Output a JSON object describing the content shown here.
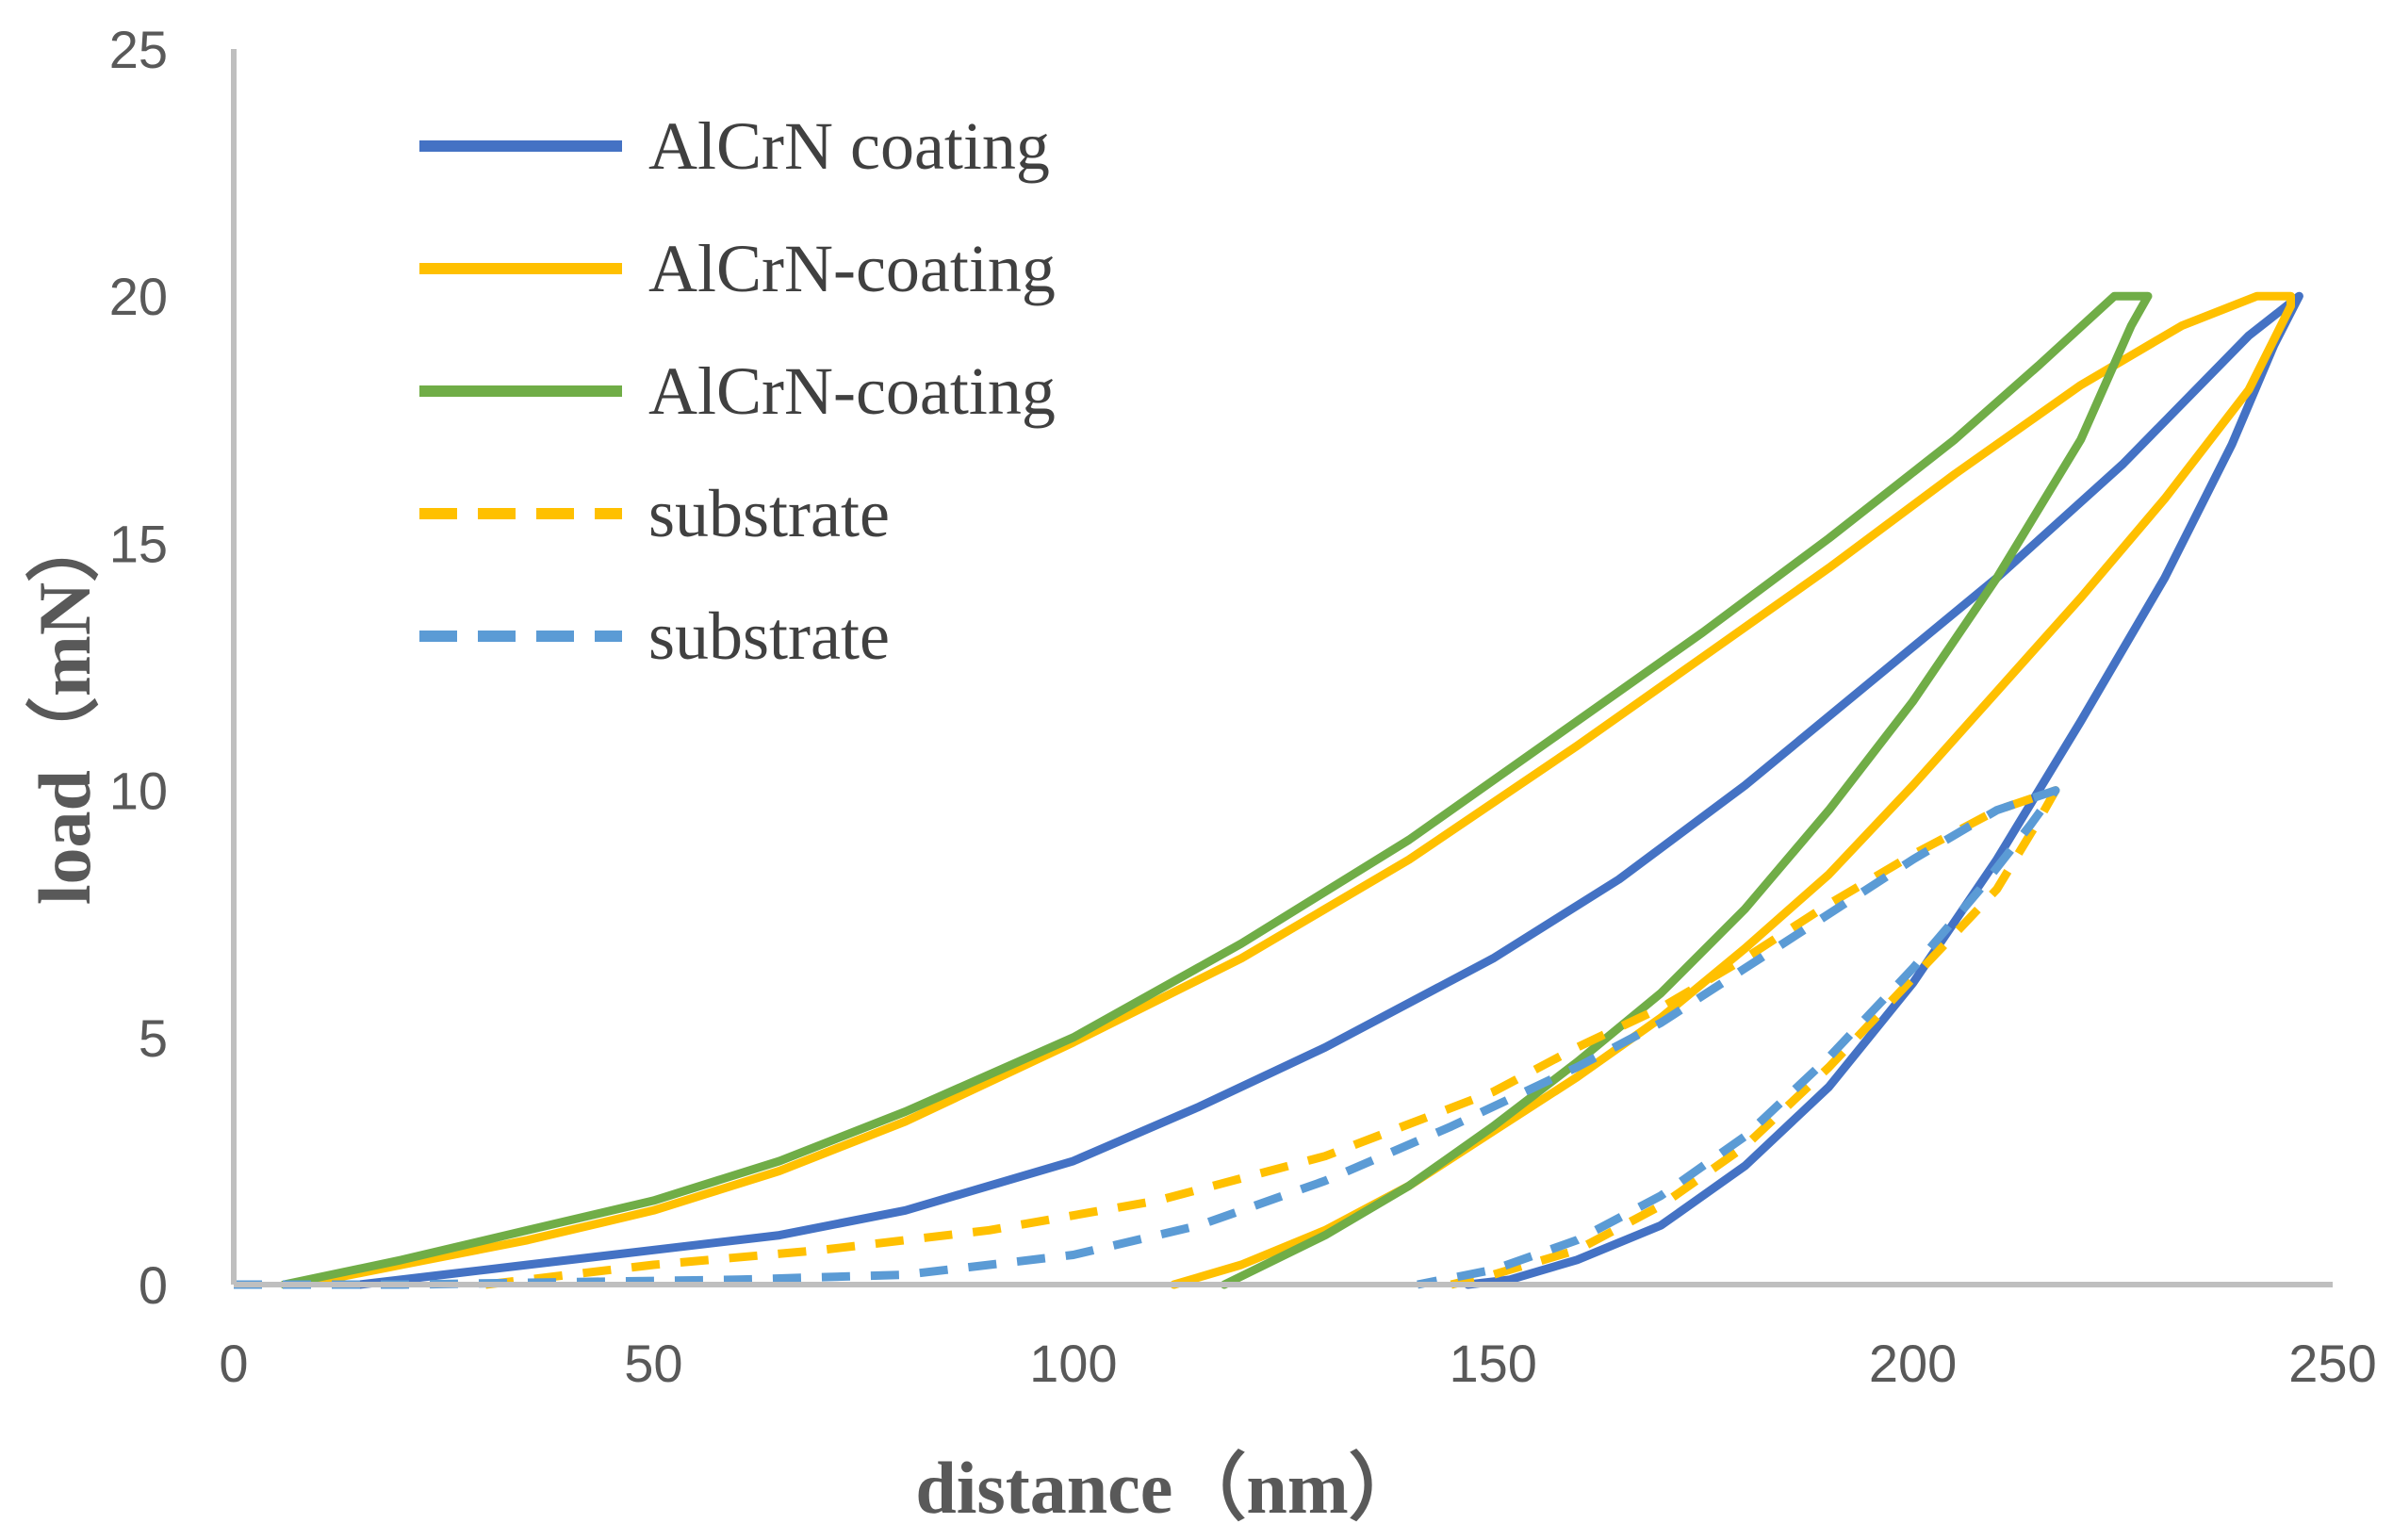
{
  "chart_data": {
    "type": "line",
    "title": "",
    "xlabel": "distance（nm）",
    "ylabel": "load（mN）",
    "xlim": [
      0,
      250
    ],
    "ylim": [
      0,
      25
    ],
    "xticks": [
      0,
      50,
      100,
      150,
      200,
      250
    ],
    "yticks": [
      0,
      5,
      10,
      15,
      20,
      25
    ],
    "xtick_labels": [
      "0",
      "50",
      "100",
      "150",
      "200",
      "250"
    ],
    "ytick_labels": [
      "0",
      "5",
      "10",
      "15",
      "20",
      "25"
    ],
    "grid": false,
    "legend_position": "top-left",
    "series": [
      {
        "name": "AlCrN coating",
        "color": "#4472C4",
        "style": "solid",
        "x": [
          15,
          25,
          35,
          50,
          65,
          80,
          100,
          115,
          130,
          150,
          165,
          180,
          195,
          210,
          225,
          240,
          246,
          243,
          238,
          230,
          220,
          210,
          200,
          190,
          180,
          170,
          160,
          152,
          147
        ],
        "y": [
          0,
          0.2,
          0.4,
          0.7,
          1.0,
          1.5,
          2.5,
          3.6,
          4.8,
          6.6,
          8.2,
          10.1,
          12.2,
          14.3,
          16.6,
          19.2,
          20,
          19.0,
          17.0,
          14.3,
          11.4,
          8.6,
          6.1,
          4.0,
          2.4,
          1.2,
          0.5,
          0.1,
          0
        ]
      },
      {
        "name": "AlCrN-coating",
        "color": "#FFC000",
        "style": "solid",
        "x": [
          8,
          20,
          35,
          50,
          65,
          80,
          100,
          120,
          140,
          160,
          175,
          190,
          205,
          220,
          232,
          241,
          245,
          245,
          240,
          230,
          220,
          210,
          200,
          190,
          180,
          170,
          160,
          150,
          140,
          130,
          120,
          112
        ],
        "y": [
          0,
          0.4,
          0.9,
          1.5,
          2.3,
          3.3,
          4.9,
          6.6,
          8.6,
          10.9,
          12.7,
          14.5,
          16.4,
          18.2,
          19.4,
          20,
          20,
          19.8,
          18.1,
          15.9,
          13.9,
          12.0,
          10.1,
          8.3,
          6.8,
          5.4,
          4.2,
          3.1,
          2.0,
          1.1,
          0.4,
          0
        ]
      },
      {
        "name": "AlCrN-coating",
        "color": "#70AD47",
        "style": "solid",
        "x": [
          6,
          20,
          35,
          50,
          65,
          80,
          100,
          120,
          140,
          160,
          175,
          190,
          205,
          215,
          224,
          228,
          226,
          220,
          210,
          200,
          190,
          180,
          170,
          160,
          150,
          140,
          130,
          118
        ],
        "y": [
          0,
          0.5,
          1.1,
          1.7,
          2.5,
          3.5,
          5.0,
          6.9,
          9.0,
          11.4,
          13.2,
          15.1,
          17.1,
          18.6,
          20,
          20,
          19.4,
          17.1,
          14.3,
          11.8,
          9.6,
          7.6,
          5.9,
          4.5,
          3.2,
          2.0,
          1.0,
          0
        ]
      },
      {
        "name": "substrate",
        "color": "#FFC000",
        "style": "dashed",
        "x": [
          30,
          50,
          70,
          90,
          110,
          130,
          150,
          160,
          170,
          180,
          190,
          200,
          210,
          217,
          215,
          210,
          200,
          190,
          180,
          170,
          160,
          150,
          145
        ],
        "y": [
          0,
          0.4,
          0.7,
          1.1,
          1.7,
          2.6,
          3.9,
          4.8,
          5.6,
          6.6,
          7.7,
          8.7,
          9.6,
          10,
          9.4,
          8.0,
          6.2,
          4.4,
          2.8,
          1.6,
          0.7,
          0.2,
          0
        ]
      },
      {
        "name": "substrate",
        "color": "#5B9BD5",
        "style": "dashed",
        "x": [
          0,
          20,
          40,
          60,
          80,
          100,
          115,
          130,
          145,
          160,
          170,
          180,
          190,
          200,
          210,
          217,
          214,
          208,
          200,
          190,
          180,
          170,
          160,
          150,
          141
        ],
        "y": [
          0,
          0,
          0.05,
          0.1,
          0.2,
          0.6,
          1.2,
          2.1,
          3.2,
          4.4,
          5.3,
          6.4,
          7.5,
          8.6,
          9.6,
          10,
          9.3,
          8.0,
          6.4,
          4.6,
          3.0,
          1.8,
          0.9,
          0.3,
          0
        ]
      }
    ]
  }
}
